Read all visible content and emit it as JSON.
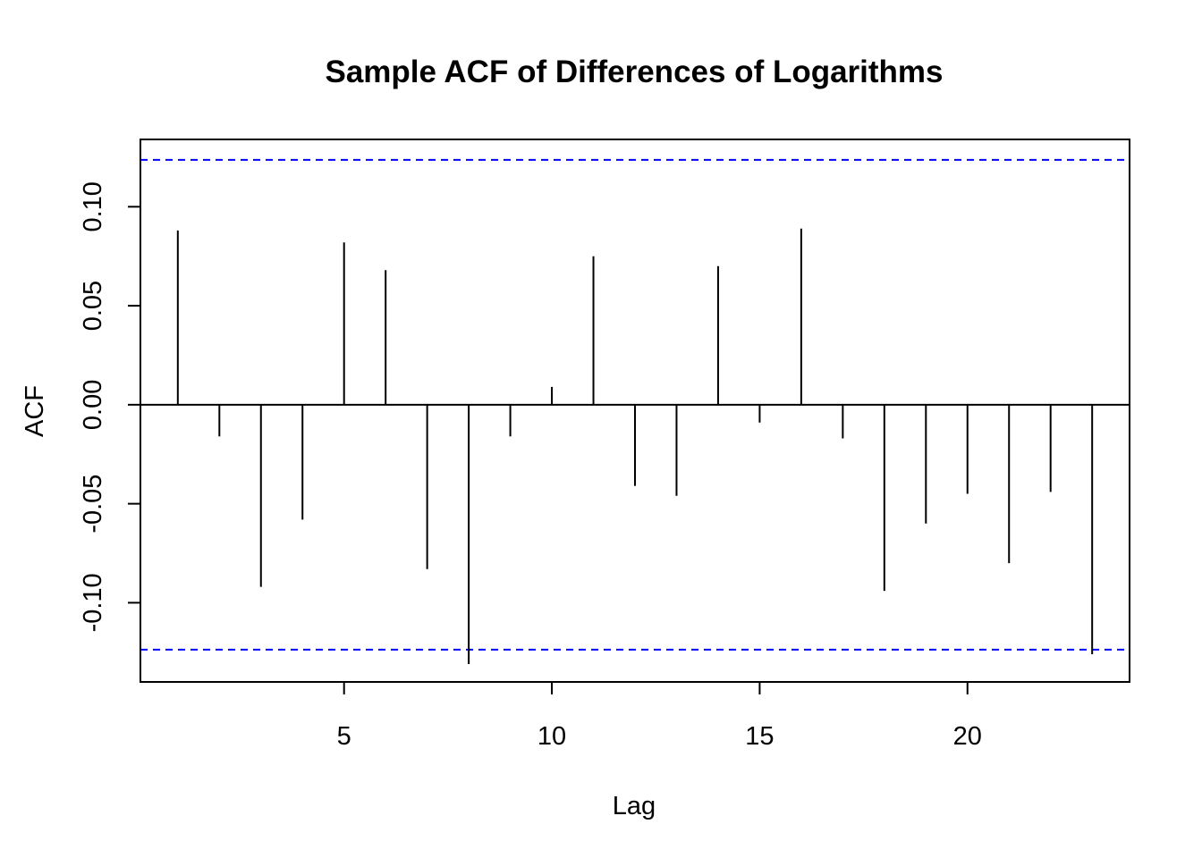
{
  "chart_data": {
    "type": "bar",
    "title": "Sample ACF of Differences of Logarithms",
    "xlabel": "Lag",
    "ylabel": "ACF",
    "xlim": [
      0.1,
      23.9
    ],
    "ylim": [
      -0.14,
      0.134
    ],
    "xticks": [
      5,
      10,
      15,
      20
    ],
    "xtick_labels": [
      "5",
      "10",
      "15",
      "20"
    ],
    "yticks": [
      -0.1,
      -0.05,
      0.0,
      0.05,
      0.1
    ],
    "ytick_labels": [
      "-0.10",
      "-0.05",
      "0.00",
      "0.05",
      "0.10"
    ],
    "x": [
      1,
      2,
      3,
      4,
      5,
      6,
      7,
      8,
      9,
      10,
      11,
      12,
      13,
      14,
      15,
      16,
      17,
      18,
      19,
      20,
      21,
      22,
      23
    ],
    "values": [
      0.088,
      -0.016,
      -0.092,
      -0.058,
      0.082,
      0.068,
      -0.083,
      -0.131,
      -0.016,
      0.009,
      0.075,
      -0.041,
      -0.046,
      0.07,
      -0.009,
      0.089,
      -0.017,
      -0.094,
      -0.06,
      -0.045,
      -0.08,
      -0.044,
      -0.126
    ],
    "confidence_bounds": [
      0.1237,
      -0.1237
    ],
    "colors": {
      "bars": "#000000",
      "bounds": "#0000ff",
      "frame": "#000000"
    },
    "grid": false
  }
}
